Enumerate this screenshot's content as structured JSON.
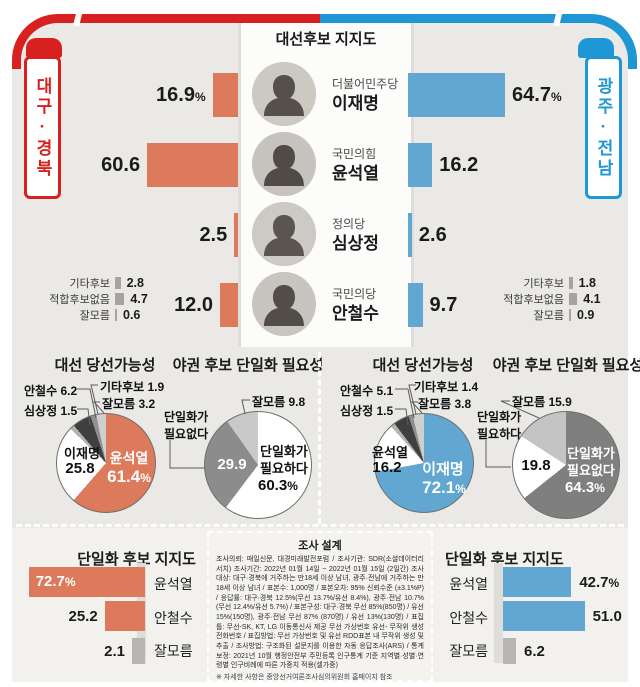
{
  "header": {
    "title": "대선후보 지지도",
    "left_region": "대구·경북",
    "right_region": "광주·전남",
    "left_color": "#d7201f",
    "right_color": "#1f97d5"
  },
  "chart_data": [
    {
      "id": "candidate_support",
      "type": "bar",
      "title": "대선후보 지지도",
      "categories": [
        "더불어민주당 이재명",
        "국민의힘 윤석열",
        "정의당 심상정",
        "국민의당 안철수"
      ],
      "series": [
        {
          "name": "대구·경북",
          "color": "#dd7a5b",
          "values": [
            16.9,
            60.6,
            2.5,
            12.0
          ]
        },
        {
          "name": "광주·전남",
          "color": "#62a7d2",
          "values": [
            64.7,
            16.2,
            2.6,
            9.7
          ]
        }
      ],
      "extras": {
        "tk": [
          [
            "기타후보",
            2.8
          ],
          [
            "적합후보없음",
            4.7
          ],
          [
            "잘모름",
            0.6
          ]
        ],
        "gj": [
          [
            "기타후보",
            1.8
          ],
          [
            "적합후보없음",
            4.1
          ],
          [
            "잘모름",
            0.9
          ]
        ]
      }
    },
    {
      "id": "win_possibility_tk",
      "type": "pie",
      "title": "대선 당선가능성",
      "region": "대구·경북",
      "segments": [
        {
          "label": "윤석열",
          "value": 61.4,
          "color": "#dd7a5b"
        },
        {
          "label": "이재명",
          "value": 25.8,
          "color": "#ffffff"
        },
        {
          "label": "심상정",
          "value": 1.5,
          "color": "#b3b3b3"
        },
        {
          "label": "안철수",
          "value": 6.2,
          "color": "#3f3f3f"
        },
        {
          "label": "기타후보",
          "value": 1.9,
          "color": "#909090"
        },
        {
          "label": "잘모름",
          "value": 3.2,
          "color": "#cfcfcf"
        }
      ]
    },
    {
      "id": "unification_need_tk",
      "type": "pie",
      "title": "야권 후보 단일화 필요성",
      "region": "대구·경북",
      "segments": [
        {
          "label": "단일화가 필요하다",
          "value": 60.3,
          "color": "#ffffff"
        },
        {
          "label": "단일화가 필요없다",
          "value": 29.9,
          "color": "#8c8c8c"
        },
        {
          "label": "잘모름",
          "value": 9.8,
          "color": "#c9c9c9"
        }
      ]
    },
    {
      "id": "win_possibility_gj",
      "type": "pie",
      "title": "대선 당선가능성",
      "region": "광주·전남",
      "segments": [
        {
          "label": "이재명",
          "value": 72.1,
          "color": "#62a7d2"
        },
        {
          "label": "윤석열",
          "value": 16.2,
          "color": "#ffffff"
        },
        {
          "label": "심상정",
          "value": 1.5,
          "color": "#b3b3b3"
        },
        {
          "label": "안철수",
          "value": 5.1,
          "color": "#3f3f3f"
        },
        {
          "label": "기타후보",
          "value": 1.4,
          "color": "#909090"
        },
        {
          "label": "잘모름",
          "value": 3.8,
          "color": "#cfcfcf"
        }
      ]
    },
    {
      "id": "unification_need_gj",
      "type": "pie",
      "title": "야권 후보 단일화 필요성",
      "region": "광주·전남",
      "segments": [
        {
          "label": "단일화가 필요없다",
          "value": 64.3,
          "color": "#7f7f7f"
        },
        {
          "label": "단일화가 필요하다",
          "value": 19.8,
          "color": "#ffffff"
        },
        {
          "label": "잘모름",
          "value": 15.9,
          "color": "#c4c4c4"
        }
      ]
    },
    {
      "id": "unified_candidate_support_tk",
      "type": "bar",
      "title": "단일화 후보 지지도",
      "region": "대구·경북",
      "categories": [
        "윤석열",
        "안철수",
        "잘모름"
      ],
      "values": [
        72.7,
        25.2,
        2.1
      ]
    },
    {
      "id": "unified_candidate_support_gj",
      "type": "bar",
      "title": "단일화 후보 지지도",
      "region": "광주·전남",
      "categories": [
        "윤석열",
        "안철수",
        "잘모름"
      ],
      "values": [
        42.7,
        51.0,
        6.2
      ]
    }
  ],
  "support": {
    "rows": [
      {
        "party": "더불어민주당",
        "name": "이재명",
        "left_value": "16.9",
        "left_pct": "%",
        "right_value": "64.7",
        "right_pct": "%"
      },
      {
        "party": "국민의힘",
        "name": "윤석열",
        "left_value": "60.6",
        "left_pct": "",
        "right_value": "16.2",
        "right_pct": ""
      },
      {
        "party": "정의당",
        "name": "심상정",
        "left_value": "2.5",
        "left_pct": "",
        "right_value": "2.6",
        "right_pct": ""
      },
      {
        "party": "국민의당",
        "name": "안철수",
        "left_value": "12.0",
        "left_pct": "",
        "right_value": "9.7",
        "right_pct": ""
      }
    ],
    "left_extras": [
      {
        "label": "기타후보",
        "value": "2.8"
      },
      {
        "label": "적합후보없음",
        "value": "4.7"
      },
      {
        "label": "잘모름",
        "value": "0.6"
      }
    ],
    "right_extras": [
      {
        "label": "기타후보",
        "value": "1.8"
      },
      {
        "label": "적합후보없음",
        "value": "4.1"
      },
      {
        "label": "잘모름",
        "value": "0.9"
      }
    ]
  },
  "pies": {
    "tk_win": {
      "title": "대선 당선가능성",
      "inner_main": "윤석열",
      "inner_main_value": "61.4",
      "inner_main_pct": "%",
      "inner_sub": "이재명",
      "inner_sub_value": "25.8",
      "callouts": [
        "안철수 6.2",
        "심상정 1.5",
        "기타후보 1.9",
        "잘모름 3.2"
      ]
    },
    "tk_unify": {
      "title": "야권 후보 단일화 필요성",
      "main_line1": "단일화가",
      "main_line2": "필요하다",
      "main_value": "60.3",
      "main_pct": "%",
      "sub_value": "29.9",
      "side_line1": "단일화가",
      "side_line2": "필요없다",
      "callout": "잘모름 9.8"
    },
    "gj_win": {
      "title": "대선 당선가능성",
      "inner_main": "이재명",
      "inner_main_value": "72.1",
      "inner_main_pct": "%",
      "inner_sub": "윤석열",
      "inner_sub_value": "16.2",
      "callouts": [
        "안철수 5.1",
        "심상정 1.5",
        "기타후보 1.4",
        "잘모름 3.8"
      ]
    },
    "gj_unify": {
      "title": "야권 후보 단일화 필요성",
      "main_line1": "단일화가",
      "main_line2": "필요없다",
      "main_value": "64.3",
      "main_pct": "%",
      "sub_value": "19.8",
      "side_line1": "단일화가",
      "side_line2": "필요하다",
      "callout": "잘모름 15.9"
    }
  },
  "bottom": {
    "left": {
      "title": "단일화 후보 지지도",
      "rows": [
        {
          "label": "윤석열",
          "value": "72.7",
          "pct": "%"
        },
        {
          "label": "안철수",
          "value": "25.2",
          "pct": ""
        },
        {
          "label": "잘모름",
          "value": "2.1",
          "pct": ""
        }
      ]
    },
    "right": {
      "title": "단일화 후보 지지도",
      "rows": [
        {
          "label": "윤석열",
          "value": "42.7",
          "pct": "%"
        },
        {
          "label": "안철수",
          "value": "51.0",
          "pct": ""
        },
        {
          "label": "잘모름",
          "value": "6.2",
          "pct": ""
        }
      ]
    }
  },
  "survey": {
    "title": "조사 설계",
    "body": "조사의뢰: 매일신문, 대경미래발전포럼 / 조사기관: SDR(소셜데이터리서치) 조사기간: 2022년 01월 14일 ~ 2022년 01월 15일 (2일간) 조사대상: 대구·경북에 거주하는 만18세 이상 남녀, 광주·전남에 거주하는 만18세 이상 남녀 / 표본수: 1,000명 / 표본오차: 95% 신뢰수준 (±3.1%P) / 응답률: 대구·경북 12.5%(무선 13.7%/유선 8.4%), 광주·전남 10.7%(무선 12.4%/유선 5.7%) / 표본구성: 대구·경북 무선 85%(850명) / 유선15%(150명), 광주·전남 무선 87% (870명) / 유선 13%(130명) / 표집틀: 무선-SK, KT, LG 이동통신사 제공 무선 가상번호 유선- 무작위 생성 전화번호 / 표집방법: 무선 가상번호 및 유선 RDD표본 내 무작위 생성 및 추출 / 조사방법: 구조화된 설문지를 이용한 자동 응답조사(ARS) / 통계보정: 2021년 10월 행정안전부 주민등록 인구통계 기준 지역별·성별·연령별 인구비례에 따른 가중치 적용(셀가중)",
    "note": "※ 자세한 사항은 중앙선거여론조사심의위원회 홈페이지 참조"
  }
}
